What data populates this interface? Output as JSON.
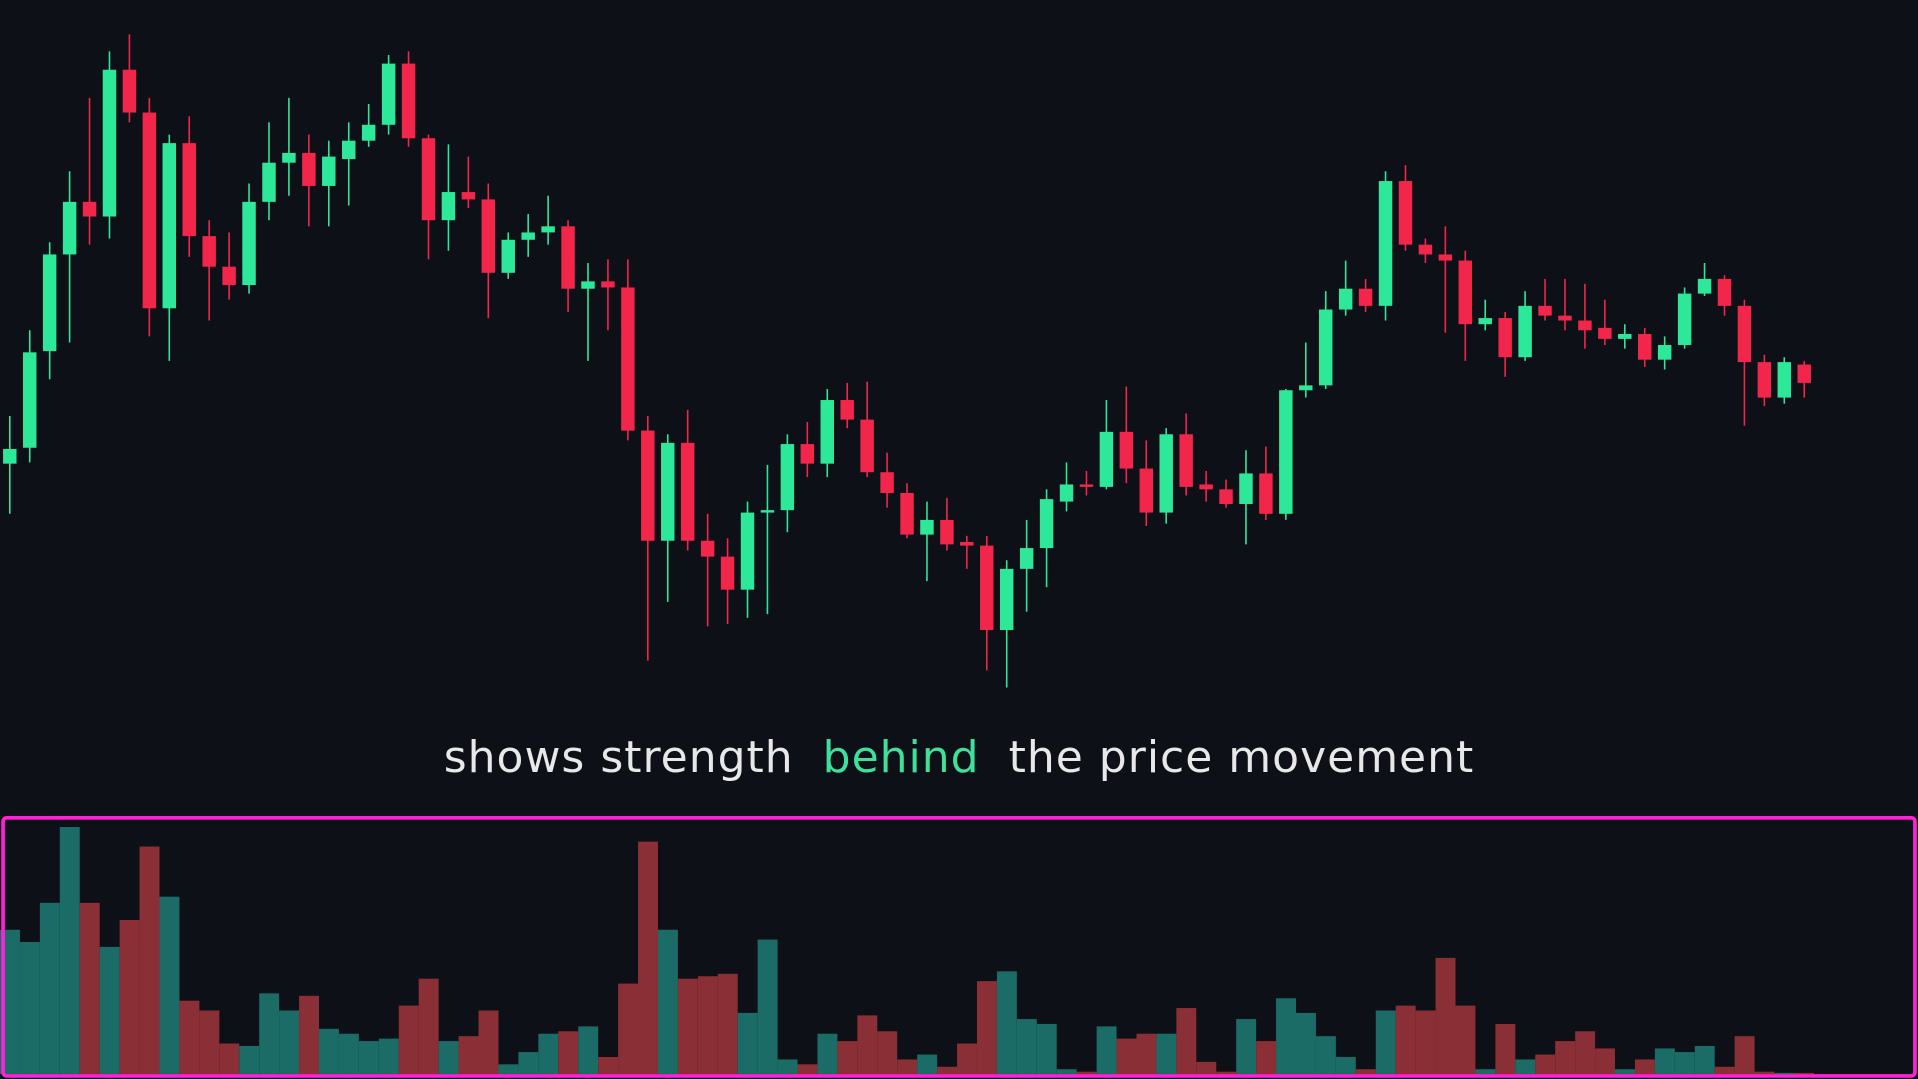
{
  "chart_data": {
    "type": "candlestick",
    "caption": [
      "shows strength",
      "behind",
      "the price movement"
    ],
    "caption_colors": [
      "#e8e8e8",
      "#3ee09a",
      "#e8e8e8"
    ],
    "up_color": "#2ee89a",
    "down_color": "#f2264b",
    "volume_up_color": "#1b6b66",
    "volume_down_color": "#8a2f35",
    "highlight_color": "#ff22d6",
    "ylim": [
      0,
      600
    ],
    "vlim": [
      0,
      210
    ],
    "open": [
      221,
      234,
      313,
      392,
      435,
      423,
      543,
      508,
      348,
      483,
      407,
      382,
      367,
      435,
      467,
      475,
      448,
      470,
      485,
      498,
      548,
      487,
      420,
      443,
      437,
      377,
      404,
      410,
      415,
      364,
      370,
      365,
      248,
      158,
      238,
      158,
      145,
      118,
      181,
      183,
      237,
      221,
      273,
      257,
      214,
      197,
      163,
      175,
      157,
      154,
      85,
      135,
      152,
      190,
      204,
      202,
      247,
      217,
      181,
      245,
      204,
      200,
      188,
      213,
      180,
      281,
      285,
      347,
      364,
      350,
      452,
      400,
      392,
      387,
      335,
      340,
      308,
      350,
      342,
      338,
      332,
      323,
      327,
      306,
      318,
      360,
      372,
      350,
      304,
      275,
      302
    ],
    "close": [
      233,
      312,
      392,
      435,
      423,
      543,
      508,
      348,
      483,
      407,
      382,
      367,
      435,
      467,
      475,
      448,
      472,
      485,
      498,
      548,
      487,
      420,
      443,
      437,
      377,
      404,
      410,
      415,
      364,
      370,
      365,
      248,
      158,
      238,
      158,
      145,
      118,
      181,
      183,
      237,
      221,
      273,
      257,
      214,
      197,
      163,
      175,
      155,
      154,
      85,
      135,
      152,
      192,
      204,
      202,
      247,
      217,
      181,
      245,
      202,
      200,
      188,
      213,
      180,
      281,
      285,
      347,
      364,
      350,
      452,
      400,
      392,
      387,
      335,
      340,
      308,
      350,
      342,
      338,
      330,
      323,
      327,
      306,
      318,
      360,
      372,
      350,
      304,
      275,
      304,
      287
    ],
    "high": [
      260,
      330,
      402,
      460,
      520,
      558,
      572,
      520,
      490,
      505,
      420,
      410,
      450,
      500,
      520,
      490,
      485,
      500,
      515,
      555,
      558,
      490,
      482,
      472,
      450,
      410,
      425,
      440,
      420,
      385,
      388,
      388,
      260,
      245,
      265,
      180,
      160,
      190,
      220,
      245,
      255,
      282,
      287,
      288,
      230,
      205,
      190,
      193,
      162,
      162,
      142,
      175,
      200,
      222,
      215,
      273,
      284,
      240,
      250,
      262,
      215,
      208,
      232,
      235,
      282,
      320,
      362,
      387,
      372,
      460,
      465,
      405,
      415,
      395,
      355,
      345,
      362,
      372,
      372,
      368,
      355,
      335,
      332,
      325,
      365,
      385,
      375,
      355,
      310,
      308,
      305
    ],
    "low": [
      180,
      222,
      290,
      320,
      400,
      405,
      500,
      325,
      305,
      390,
      338,
      355,
      360,
      420,
      440,
      415,
      415,
      432,
      480,
      490,
      480,
      388,
      395,
      430,
      340,
      372,
      390,
      400,
      345,
      305,
      330,
      240,
      60,
      108,
      150,
      88,
      90,
      95,
      98,
      165,
      210,
      210,
      250,
      210,
      185,
      160,
      125,
      150,
      135,
      52,
      38,
      100,
      120,
      182,
      195,
      200,
      205,
      170,
      172,
      195,
      190,
      185,
      155,
      175,
      175,
      275,
      282,
      342,
      345,
      338,
      395,
      385,
      328,
      305,
      330,
      292,
      305,
      338,
      330,
      315,
      318,
      315,
      300,
      298,
      315,
      358,
      342,
      252,
      268,
      270,
      275
    ],
    "volume": [
      118,
      108,
      140,
      202,
      140,
      104,
      126,
      186,
      145,
      60,
      52,
      25,
      23,
      66,
      52,
      64,
      37,
      33,
      27,
      29,
      56,
      78,
      27,
      31,
      52,
      8,
      18,
      33,
      35,
      39,
      14,
      74,
      190,
      118,
      78,
      80,
      82,
      50,
      110,
      12,
      8,
      33,
      27,
      48,
      35,
      12,
      16,
      6,
      25,
      76,
      84,
      45,
      41,
      4,
      2,
      39,
      29,
      33,
      33,
      54,
      10,
      2,
      45,
      27,
      62,
      50,
      31,
      14,
      4,
      52,
      56,
      52,
      95,
      56,
      4,
      41,
      12,
      16,
      27,
      35,
      21,
      4,
      12,
      21,
      18,
      23,
      6,
      31,
      2,
      1,
      1
    ]
  }
}
